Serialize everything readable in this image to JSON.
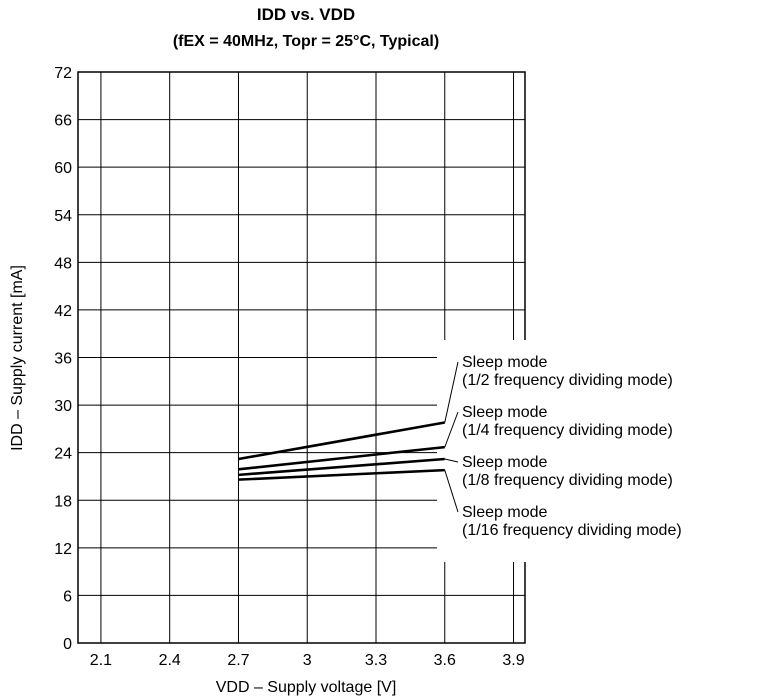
{
  "chart_data": {
    "type": "line",
    "title": "IDD vs. VDD",
    "subtitle": "(fEX = 40MHz, Topr = 25°C, Typical)",
    "xlabel": "VDD – Supply voltage [V]",
    "ylabel": "IDD – Supply current [mA]",
    "xlim": [
      2.0,
      3.95
    ],
    "ylim": [
      0,
      72
    ],
    "xticks": [
      "2.1",
      "2.4",
      "2.7",
      "3",
      "3.3",
      "3.6",
      "3.9"
    ],
    "xtick_values": [
      2.1,
      2.4,
      2.7,
      3.0,
      3.3,
      3.6,
      3.9
    ],
    "yticks": [
      "0",
      "6",
      "12",
      "18",
      "24",
      "30",
      "36",
      "42",
      "48",
      "54",
      "60",
      "66",
      "72"
    ],
    "ytick_values": [
      0,
      6,
      12,
      18,
      24,
      30,
      36,
      42,
      48,
      54,
      60,
      66,
      72
    ],
    "grid": true,
    "legend": "right, annotations",
    "series": [
      {
        "name": "Sleep mode (1/2 frequency dividing mode)",
        "label_lines": [
          "Sleep mode",
          "(1/2 frequency dividing mode)"
        ],
        "x": [
          2.7,
          3.6
        ],
        "y": [
          23.2,
          27.8
        ]
      },
      {
        "name": "Sleep mode (1/4 frequency dividing mode)",
        "label_lines": [
          "Sleep mode",
          "(1/4 frequency dividing mode)"
        ],
        "x": [
          2.7,
          3.6
        ],
        "y": [
          21.9,
          24.7
        ]
      },
      {
        "name": "Sleep mode (1/8 frequency dividing mode)",
        "label_lines": [
          "Sleep mode",
          "(1/8 frequency dividing mode)"
        ],
        "x": [
          2.7,
          3.6
        ],
        "y": [
          21.2,
          23.2
        ]
      },
      {
        "name": "Sleep mode (1/16 frequency dividing mode)",
        "label_lines": [
          "Sleep mode",
          "(1/16 frequency dividing mode)"
        ],
        "x": [
          2.7,
          3.6
        ],
        "y": [
          20.6,
          21.8
        ]
      }
    ]
  }
}
